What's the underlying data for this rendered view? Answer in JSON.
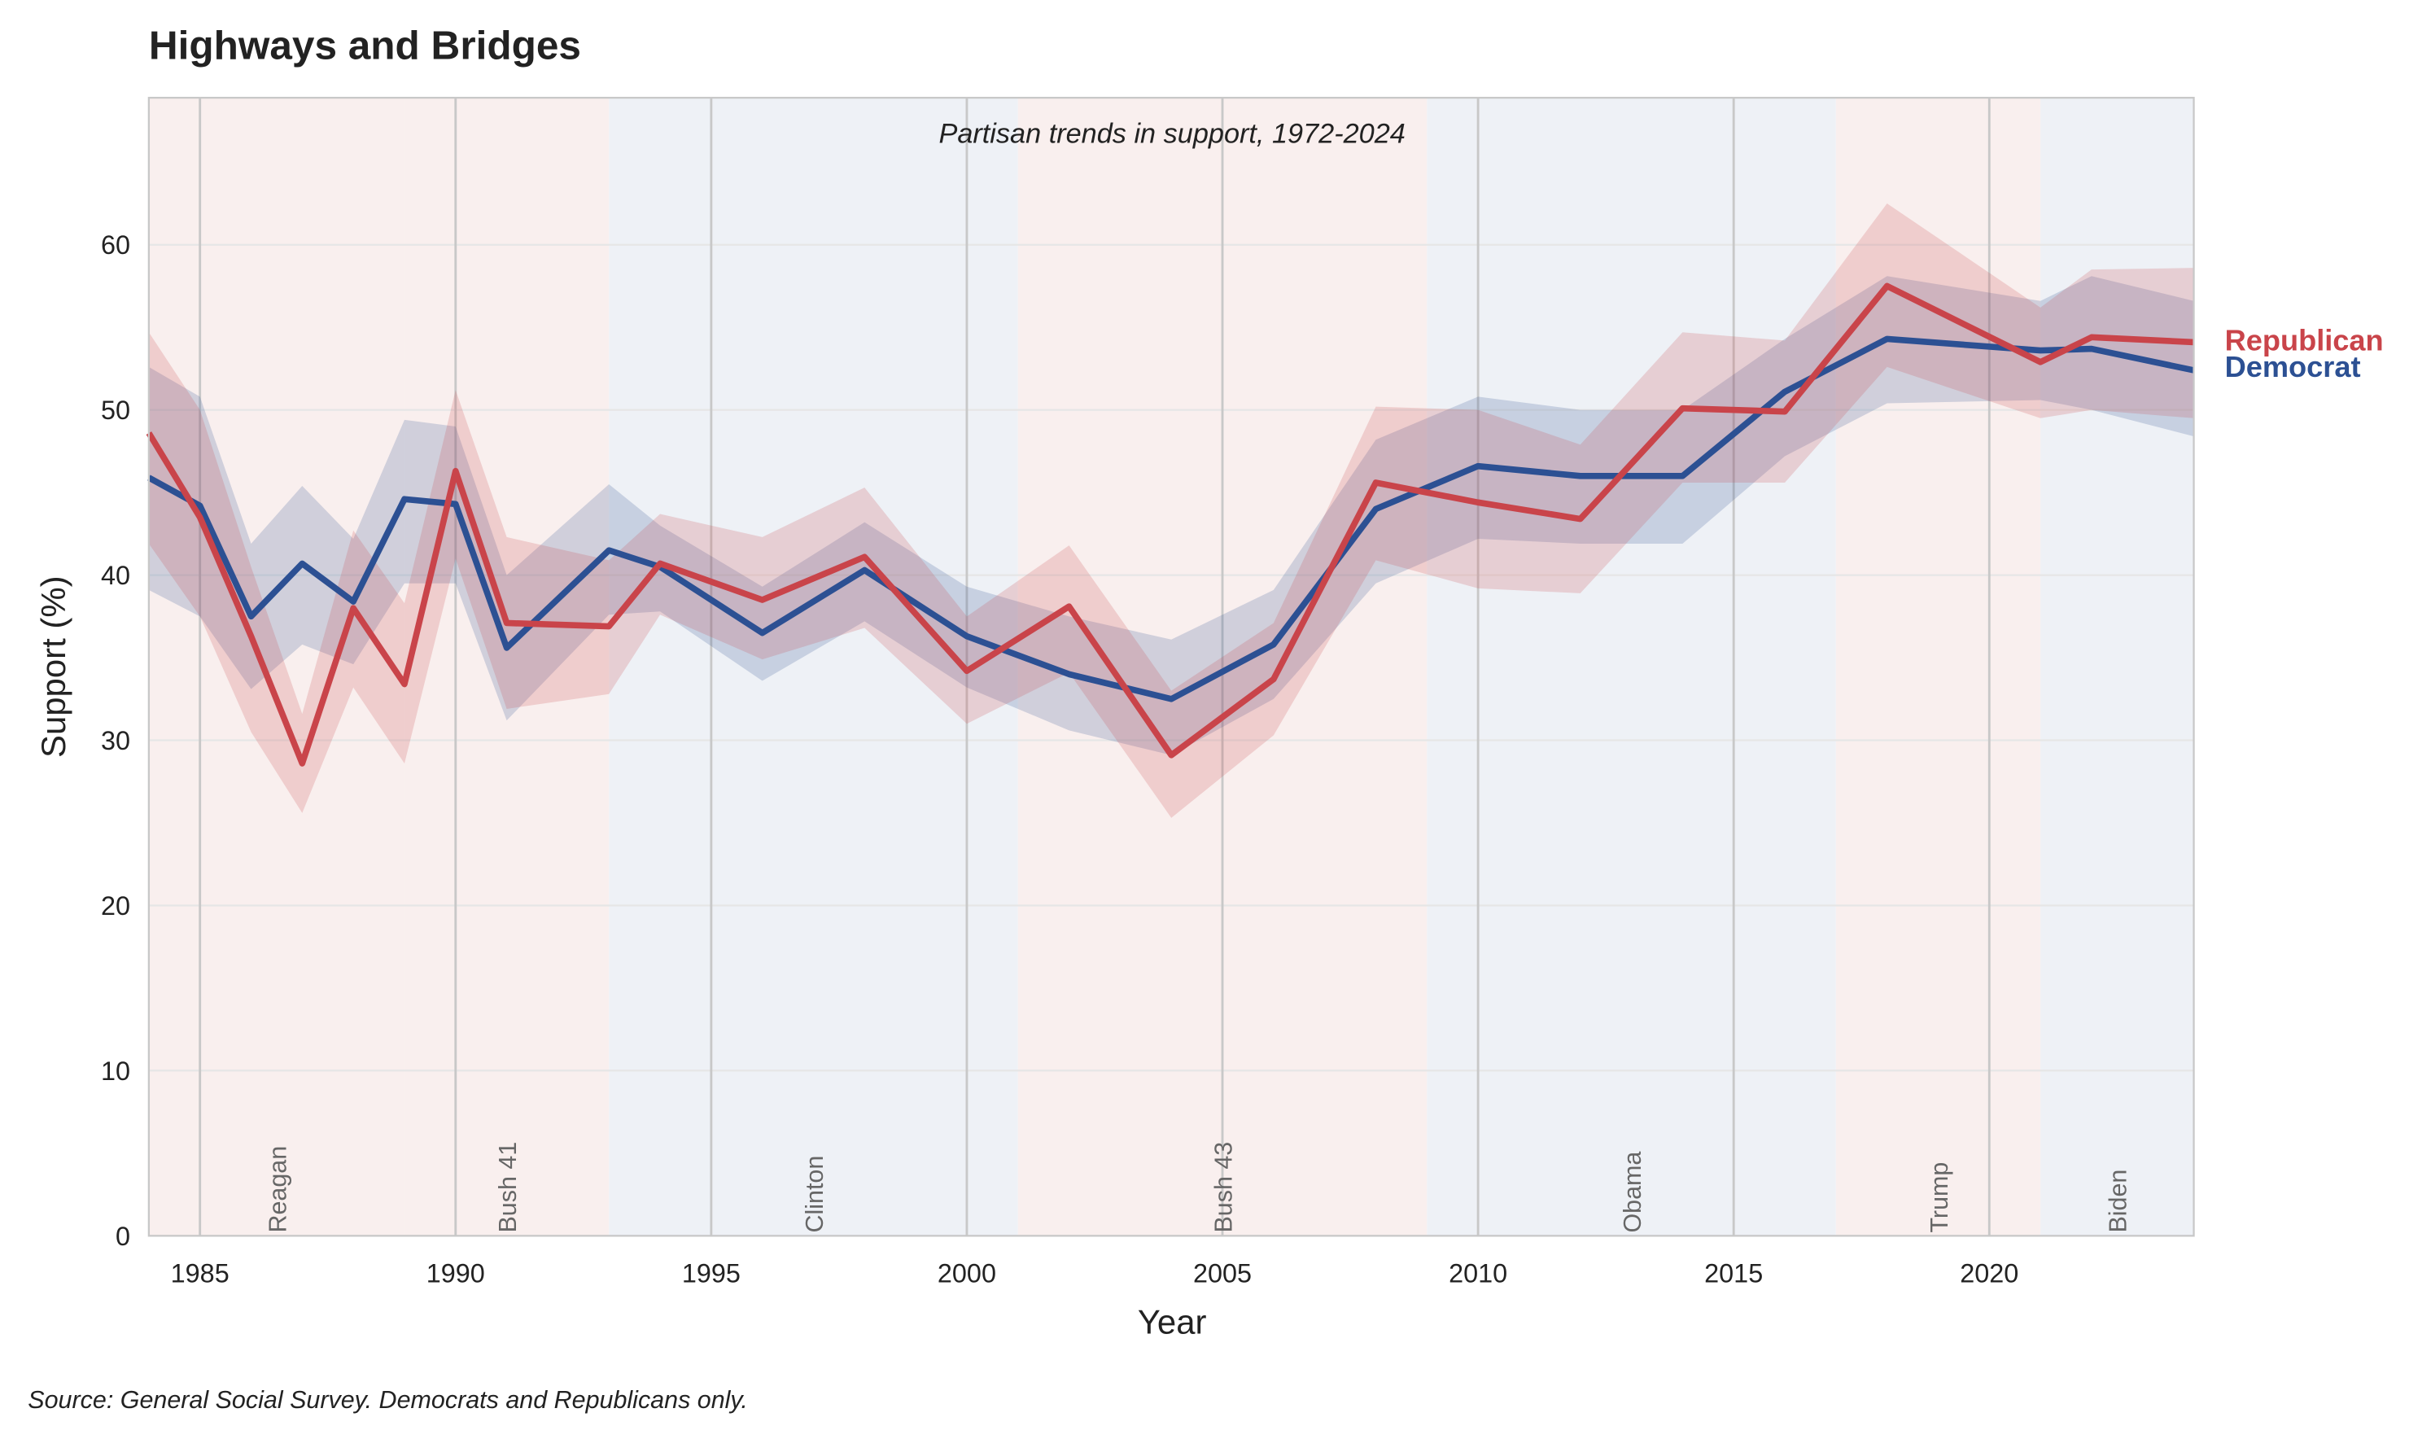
{
  "chart_data": {
    "type": "line",
    "title": "Highways and Bridges",
    "subtitle": "Partisan trends in support, 1972-2024",
    "xlabel": "Year",
    "ylabel": "Support (%)",
    "source": "Source: General Social Survey. Democrats and Republicans only.",
    "xlim": [
      1984,
      2024
    ],
    "ylim": [
      0,
      68.9
    ],
    "xticks": [
      1985,
      1990,
      1995,
      2000,
      2005,
      2010,
      2015,
      2020
    ],
    "yticks": [
      0,
      10,
      20,
      30,
      40,
      50,
      60
    ],
    "grid": true,
    "legend": "right (direct labels)",
    "presidencies": [
      {
        "name": "Reagan",
        "start": 1984,
        "end": 1989,
        "party": "R"
      },
      {
        "name": "Bush 41",
        "start": 1989,
        "end": 1993,
        "party": "R"
      },
      {
        "name": "Clinton",
        "start": 1993,
        "end": 2001,
        "party": "D"
      },
      {
        "name": "Bush 43",
        "start": 2001,
        "end": 2009,
        "party": "R"
      },
      {
        "name": "Obama",
        "start": 2009,
        "end": 2017,
        "party": "D"
      },
      {
        "name": "Trump",
        "start": 2017,
        "end": 2021,
        "party": "R"
      },
      {
        "name": "Biden",
        "start": 2021,
        "end": 2024,
        "party": "D"
      }
    ],
    "series": [
      {
        "name": "Democrat",
        "color": "#2c5093",
        "x": [
          1984,
          1985,
          1986,
          1987,
          1988,
          1989,
          1990,
          1991,
          1993,
          1994,
          1996,
          1998,
          2000,
          2002,
          2004,
          2006,
          2008,
          2010,
          2012,
          2014,
          2016,
          2018,
          2021,
          2022,
          2024
        ],
        "y": [
          45.9,
          44.2,
          37.5,
          40.7,
          38.4,
          44.6,
          44.3,
          35.6,
          41.5,
          40.5,
          36.5,
          40.3,
          36.3,
          34.0,
          32.5,
          35.8,
          44.0,
          46.6,
          46.0,
          46.0,
          51.1,
          54.3,
          53.6,
          53.7,
          52.4
        ],
        "upper": [
          52.6,
          50.8,
          41.9,
          45.4,
          42.2,
          49.4,
          49.0,
          40.0,
          45.5,
          43.0,
          39.3,
          43.2,
          39.3,
          37.5,
          36.1,
          39.1,
          48.2,
          50.8,
          50.0,
          50.0,
          54.3,
          58.1,
          56.6,
          58.1,
          56.6
        ],
        "lower": [
          39.1,
          37.5,
          33.1,
          35.8,
          34.6,
          39.5,
          39.5,
          31.2,
          37.6,
          37.8,
          33.6,
          37.2,
          33.2,
          30.6,
          29.1,
          32.5,
          39.5,
          42.2,
          41.9,
          41.9,
          47.2,
          50.4,
          50.6,
          50.0,
          48.4
        ]
      },
      {
        "name": "Republican",
        "color": "#c9444a",
        "x": [
          1984,
          1985,
          1986,
          1987,
          1988,
          1989,
          1990,
          1991,
          1993,
          1994,
          1996,
          1998,
          2000,
          2002,
          2004,
          2006,
          2008,
          2010,
          2012,
          2014,
          2016,
          2018,
          2021,
          2022,
          2024
        ],
        "y": [
          48.6,
          43.5,
          36.3,
          28.6,
          38.0,
          33.4,
          46.3,
          37.1,
          36.9,
          40.7,
          38.5,
          41.1,
          34.2,
          38.1,
          29.1,
          33.7,
          45.6,
          44.4,
          43.4,
          50.1,
          49.9,
          57.5,
          52.9,
          54.4,
          54.1
        ],
        "upper": [
          54.7,
          50.0,
          40.5,
          31.6,
          42.7,
          38.3,
          51.2,
          42.3,
          40.9,
          43.7,
          42.3,
          45.3,
          37.5,
          41.8,
          33.0,
          37.1,
          50.2,
          50.0,
          47.9,
          54.7,
          54.2,
          62.5,
          56.2,
          58.5,
          58.6
        ],
        "lower": [
          41.9,
          37.5,
          30.5,
          25.6,
          33.2,
          28.6,
          41.0,
          31.9,
          32.8,
          37.6,
          34.9,
          36.8,
          31.0,
          34.1,
          25.3,
          30.3,
          40.9,
          39.2,
          38.9,
          45.6,
          45.6,
          52.6,
          49.5,
          50.0,
          49.5
        ]
      }
    ],
    "colors": {
      "republican_bg": "#f9efee",
      "democrat_bg": "#eef1f6",
      "grid": "#e6e6e6",
      "vline": "#c8c8c8"
    }
  }
}
